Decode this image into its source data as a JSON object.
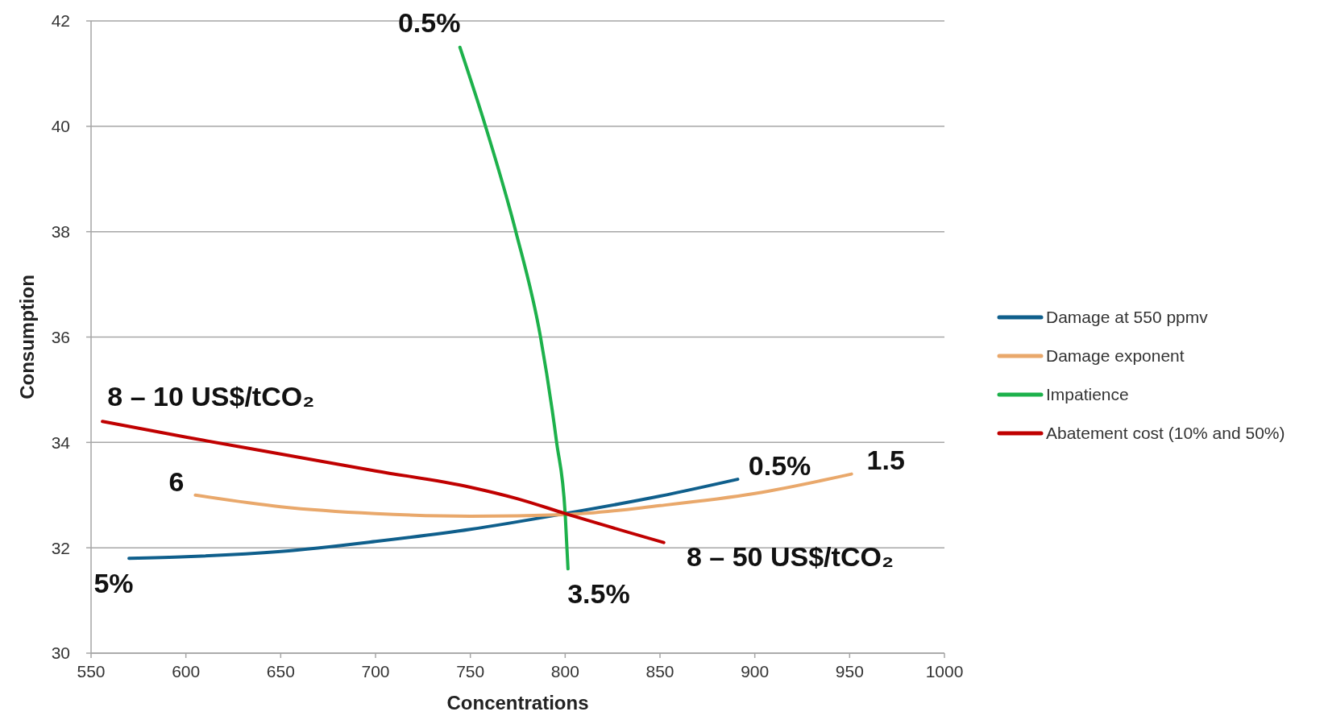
{
  "chart_data": {
    "type": "line",
    "xlabel": "Concentrations",
    "ylabel": "Consumption",
    "xlim": [
      550,
      1000
    ],
    "ylim": [
      30,
      42
    ],
    "xticks": [
      550,
      600,
      650,
      700,
      750,
      800,
      850,
      900,
      950,
      1000
    ],
    "yticks": [
      30,
      32,
      34,
      36,
      38,
      40,
      42
    ],
    "grid": "y",
    "legend": "right",
    "marker": "none",
    "line_style": "solid",
    "series": [
      {
        "name": "Damage at 550 ppmv",
        "color": "#0f5f8c",
        "x": [
          570,
          600,
          650,
          700,
          750,
          800,
          850,
          891
        ],
        "values": [
          31.8,
          31.83,
          31.93,
          32.12,
          32.35,
          32.65,
          32.98,
          33.3
        ]
      },
      {
        "name": "Damage exponent",
        "color": "#e9a86b",
        "x": [
          605,
          650,
          700,
          750,
          800,
          850,
          900,
          951
        ],
        "values": [
          33.0,
          32.78,
          32.65,
          32.6,
          32.63,
          32.8,
          33.03,
          33.4
        ]
      },
      {
        "name": "Impatience",
        "color": "#1db14b",
        "x": [
          744.5,
          758,
          774,
          787,
          795.5,
          800,
          801.5
        ],
        "values": [
          41.5,
          40,
          38,
          36,
          34,
          32.65,
          31.6
        ]
      },
      {
        "name": "Abatement cost (10% and 50%)",
        "color": "#c00000",
        "x": [
          556,
          600,
          650,
          700,
          750,
          775,
          800,
          852
        ],
        "values": [
          34.4,
          34.1,
          33.78,
          33.46,
          33.15,
          32.93,
          32.65,
          32.1
        ]
      }
    ],
    "annotations": [
      {
        "text": "0.5%",
        "x": 744.5,
        "y": 41.5
      },
      {
        "text": "8 – 10 US$/tCO₂",
        "x": 556,
        "y": 34.4
      },
      {
        "text": "6",
        "x": 605,
        "y": 33.0
      },
      {
        "text": "5%",
        "x": 570,
        "y": 31.8
      },
      {
        "text": "3.5%",
        "x": 801.5,
        "y": 31.6
      },
      {
        "text": "8 – 50 US$/tCO₂",
        "x": 852,
        "y": 32.1
      },
      {
        "text": "0.5%",
        "x": 891,
        "y": 33.3
      },
      {
        "text": "1.5",
        "x": 951,
        "y": 33.4
      }
    ]
  }
}
